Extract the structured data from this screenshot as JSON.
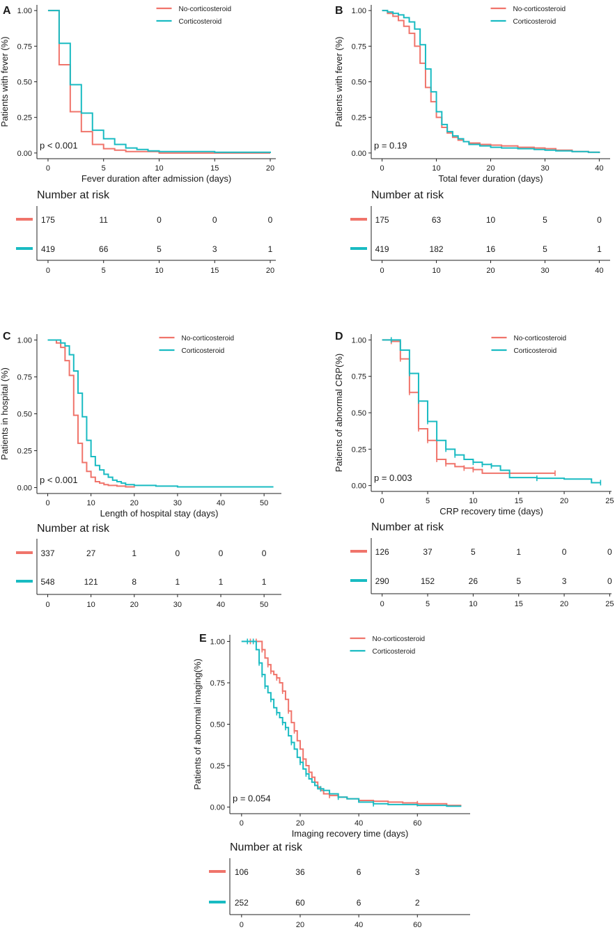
{
  "colors": {
    "no_cs": "#F0746B",
    "cs": "#19BBC2",
    "axis": "#222222",
    "text": "#1a1a1a"
  },
  "risk_title": "Number at risk",
  "chart_data": [
    {
      "panel": "A",
      "type": "line",
      "step": true,
      "xlabel": "Fever duration after admission (days)",
      "ylabel": "Patients with fever (%)",
      "xlim": [
        -1,
        20.5
      ],
      "ylim": [
        -0.04,
        1.04
      ],
      "xticks": [
        0,
        5,
        10,
        15,
        20
      ],
      "yticks": [
        0.0,
        0.25,
        0.5,
        0.75,
        1.0
      ],
      "pvalue": "p < 0.001",
      "legend": [
        "No-corticosteroid",
        "Corticosteroid"
      ],
      "legend_position": "top-right",
      "series": [
        {
          "name": "No-corticosteroid",
          "censor_marks": false,
          "x": [
            0,
            1,
            2,
            3,
            4,
            5,
            6,
            7,
            8,
            9,
            10,
            20
          ],
          "y": [
            1.0,
            0.62,
            0.29,
            0.15,
            0.06,
            0.03,
            0.02,
            0.01,
            0.01,
            0.01,
            0.0,
            0.0
          ]
        },
        {
          "name": "Corticosteroid",
          "censor_marks": false,
          "x": [
            0,
            1,
            2,
            3,
            4,
            5,
            6,
            7,
            8,
            9,
            10,
            15,
            20
          ],
          "y": [
            1.0,
            0.77,
            0.48,
            0.28,
            0.16,
            0.1,
            0.06,
            0.035,
            0.025,
            0.015,
            0.01,
            0.005,
            0.0
          ]
        }
      ],
      "risk_table": {
        "xticks": [
          0,
          5,
          10,
          15,
          20
        ],
        "times": [
          0,
          5,
          10,
          15,
          20
        ],
        "rows": [
          {
            "series": "No-corticosteroid",
            "counts": [
              "175",
              "11",
              "0",
              "0",
              "0"
            ]
          },
          {
            "series": "Corticosteroid",
            "counts": [
              "419",
              "66",
              "5",
              "3",
              "1"
            ]
          }
        ]
      }
    },
    {
      "panel": "B",
      "type": "line",
      "step": true,
      "xlabel": "Total fever duration (days)",
      "ylabel": "Patients with fever (%)",
      "xlim": [
        -2,
        42
      ],
      "ylim": [
        -0.04,
        1.04
      ],
      "xticks": [
        0,
        10,
        20,
        30,
        40
      ],
      "yticks": [
        0.0,
        0.25,
        0.5,
        0.75,
        1.0
      ],
      "pvalue": "p = 0.19",
      "legend": [
        "No-corticosteroid",
        "Corticosteroid"
      ],
      "legend_position": "top-right",
      "series": [
        {
          "name": "No-corticosteroid",
          "censor_marks": false,
          "x": [
            0,
            1,
            2,
            3,
            4,
            5,
            6,
            7,
            8,
            9,
            10,
            11,
            12,
            13,
            14,
            15,
            16,
            18,
            20,
            22,
            25,
            28,
            30,
            32,
            35,
            38,
            40
          ],
          "y": [
            1.0,
            0.98,
            0.96,
            0.93,
            0.89,
            0.84,
            0.75,
            0.63,
            0.46,
            0.36,
            0.25,
            0.18,
            0.14,
            0.11,
            0.09,
            0.08,
            0.07,
            0.06,
            0.055,
            0.05,
            0.04,
            0.035,
            0.03,
            0.02,
            0.01,
            0.005,
            0.0
          ]
        },
        {
          "name": "Corticosteroid",
          "censor_marks": false,
          "x": [
            0,
            1,
            2,
            3,
            4,
            5,
            6,
            7,
            8,
            9,
            10,
            11,
            12,
            13,
            14,
            15,
            16,
            18,
            20,
            22,
            25,
            28,
            30,
            32,
            35,
            38,
            40
          ],
          "y": [
            1.0,
            0.99,
            0.98,
            0.97,
            0.95,
            0.92,
            0.87,
            0.76,
            0.59,
            0.43,
            0.29,
            0.2,
            0.15,
            0.12,
            0.1,
            0.08,
            0.06,
            0.05,
            0.04,
            0.035,
            0.03,
            0.025,
            0.02,
            0.015,
            0.01,
            0.005,
            0.0
          ]
        }
      ],
      "risk_table": {
        "xticks": [
          0,
          10,
          20,
          30,
          40
        ],
        "times": [
          0,
          10,
          20,
          30,
          40
        ],
        "rows": [
          {
            "series": "No-corticosteroid",
            "counts": [
              "175",
              "63",
              "10",
              "5",
              "0"
            ]
          },
          {
            "series": "Corticosteroid",
            "counts": [
              "419",
              "182",
              "16",
              "5",
              "1"
            ]
          }
        ]
      }
    },
    {
      "panel": "C",
      "type": "line",
      "step": true,
      "xlabel": "Length of hospital stay (days)",
      "ylabel": "Patients in hospital (%)",
      "xlim": [
        -2.5,
        54
      ],
      "ylim": [
        -0.04,
        1.04
      ],
      "xticks": [
        0,
        10,
        20,
        30,
        40,
        50
      ],
      "yticks": [
        0.0,
        0.25,
        0.5,
        0.75,
        1.0
      ],
      "pvalue": "p < 0.001",
      "legend": [
        "No-corticosteroid",
        "Corticosteroid"
      ],
      "legend_position": "top-right",
      "series": [
        {
          "name": "No-corticosteroid",
          "censor_marks": false,
          "x": [
            0,
            2,
            3,
            4,
            5,
            6,
            7,
            8,
            9,
            10,
            11,
            12,
            13,
            14,
            16,
            18,
            20
          ],
          "y": [
            1.0,
            0.98,
            0.95,
            0.86,
            0.76,
            0.49,
            0.3,
            0.17,
            0.11,
            0.07,
            0.04,
            0.03,
            0.02,
            0.015,
            0.01,
            0.005,
            0.0
          ]
        },
        {
          "name": "Corticosteroid",
          "censor_marks": false,
          "x": [
            0,
            3,
            4,
            5,
            6,
            7,
            8,
            9,
            10,
            11,
            12,
            13,
            14,
            15,
            16,
            17,
            18,
            20,
            25,
            30,
            52
          ],
          "y": [
            1.0,
            0.98,
            0.96,
            0.9,
            0.79,
            0.64,
            0.48,
            0.32,
            0.21,
            0.15,
            0.12,
            0.09,
            0.07,
            0.05,
            0.04,
            0.03,
            0.02,
            0.015,
            0.01,
            0.005,
            0.0
          ]
        }
      ],
      "risk_table": {
        "xticks": [
          0,
          10,
          20,
          30,
          40,
          50
        ],
        "times": [
          0,
          10,
          20,
          30,
          40,
          50
        ],
        "rows": [
          {
            "series": "No-corticosteroid",
            "counts": [
              "337",
              "27",
              "1",
              "0",
              "0",
              "0"
            ]
          },
          {
            "series": "Corticosteroid",
            "counts": [
              "548",
              "121",
              "8",
              "1",
              "1",
              "1"
            ]
          }
        ]
      }
    },
    {
      "panel": "D",
      "type": "line",
      "step": true,
      "xlabel": "CRP recovery time (days)",
      "ylabel": "Patients of abnormal CRP(%)",
      "xlim": [
        -1.2,
        25.2
      ],
      "ylim": [
        -0.04,
        1.04
      ],
      "xticks": [
        0,
        5,
        10,
        15,
        20,
        25
      ],
      "yticks": [
        0.0,
        0.25,
        0.5,
        0.75,
        1.0
      ],
      "pvalue": "p = 0.003",
      "legend": [
        "No-corticosteroid",
        "Corticosteroid"
      ],
      "legend_position": "top-right",
      "series": [
        {
          "name": "No-corticosteroid",
          "censor_marks": true,
          "x": [
            0,
            1,
            2,
            3,
            4,
            5,
            6,
            7,
            8,
            9,
            10,
            11,
            19
          ],
          "y": [
            1.0,
            0.99,
            0.87,
            0.64,
            0.39,
            0.31,
            0.18,
            0.15,
            0.13,
            0.12,
            0.11,
            0.085,
            0.085
          ],
          "censor_x": [
            1,
            2,
            3,
            4,
            5,
            6,
            7,
            9,
            10,
            19
          ]
        },
        {
          "name": "Corticosteroid",
          "censor_marks": true,
          "x": [
            0,
            2,
            3,
            4,
            5,
            6,
            7,
            8,
            9,
            10,
            11,
            12,
            13,
            14,
            17,
            20,
            23,
            24
          ],
          "y": [
            1.0,
            0.93,
            0.77,
            0.58,
            0.44,
            0.31,
            0.25,
            0.21,
            0.18,
            0.16,
            0.145,
            0.135,
            0.105,
            0.055,
            0.05,
            0.045,
            0.02,
            0.02
          ],
          "censor_x": [
            1,
            3,
            4,
            5,
            7,
            8,
            10,
            11,
            12,
            17,
            24
          ]
        }
      ],
      "risk_table": {
        "xticks": [
          0,
          5,
          10,
          15,
          20,
          25
        ],
        "times": [
          0,
          5,
          10,
          15,
          20,
          25
        ],
        "rows": [
          {
            "series": "No-corticosteroid",
            "counts": [
              "126",
              "37",
              "5",
              "1",
              "0",
              "0"
            ]
          },
          {
            "series": "Corticosteroid",
            "counts": [
              "290",
              "152",
              "26",
              "5",
              "3",
              "0"
            ]
          }
        ]
      }
    },
    {
      "panel": "E",
      "type": "line",
      "step": true,
      "xlabel": "Imaging recovery time (days)",
      "ylabel": "Patients of abnormal imaging(%)",
      "xlim": [
        -4,
        78
      ],
      "ylim": [
        -0.04,
        1.04
      ],
      "xticks": [
        0,
        20,
        40,
        60
      ],
      "yticks": [
        0.0,
        0.25,
        0.5,
        0.75,
        1.0
      ],
      "pvalue": "p = 0.054",
      "legend": [
        "No-corticosteroid",
        "Corticosteroid"
      ],
      "legend_position": "top-right",
      "series": [
        {
          "name": "No-corticosteroid",
          "censor_marks": true,
          "x": [
            0,
            7,
            8,
            9,
            10,
            11,
            12,
            13,
            14,
            15,
            16,
            17,
            18,
            19,
            20,
            21,
            22,
            23,
            24,
            25,
            26,
            27,
            28,
            30,
            33,
            36,
            40,
            45,
            50,
            55,
            60,
            70,
            75
          ],
          "y": [
            1.0,
            0.95,
            0.9,
            0.86,
            0.82,
            0.8,
            0.78,
            0.75,
            0.7,
            0.65,
            0.58,
            0.51,
            0.46,
            0.4,
            0.35,
            0.29,
            0.25,
            0.21,
            0.18,
            0.15,
            0.12,
            0.1,
            0.08,
            0.07,
            0.06,
            0.05,
            0.04,
            0.035,
            0.03,
            0.025,
            0.02,
            0.01,
            0.01
          ],
          "censor_x": [
            3,
            5,
            7,
            9,
            10,
            12,
            14,
            16,
            18,
            21,
            24,
            30,
            60
          ]
        },
        {
          "name": "Corticosteroid",
          "censor_marks": true,
          "x": [
            0,
            5,
            6,
            7,
            8,
            9,
            10,
            11,
            12,
            13,
            14,
            15,
            16,
            17,
            18,
            19,
            20,
            21,
            22,
            23,
            24,
            25,
            26,
            28,
            30,
            33,
            36,
            40,
            45,
            50,
            60,
            70,
            75
          ],
          "y": [
            1.0,
            0.95,
            0.87,
            0.8,
            0.73,
            0.69,
            0.65,
            0.6,
            0.57,
            0.54,
            0.51,
            0.48,
            0.43,
            0.39,
            0.35,
            0.3,
            0.27,
            0.23,
            0.2,
            0.17,
            0.15,
            0.13,
            0.11,
            0.1,
            0.08,
            0.06,
            0.05,
            0.03,
            0.02,
            0.015,
            0.01,
            0.005,
            0.005
          ],
          "censor_x": [
            2,
            4,
            6,
            7,
            8,
            10,
            12,
            14,
            15,
            17,
            20,
            22,
            27,
            33,
            45
          ]
        }
      ],
      "risk_table": {
        "xticks": [
          0,
          20,
          40,
          60
        ],
        "times": [
          0,
          20,
          40,
          60
        ],
        "rows": [
          {
            "series": "No-corticosteroid",
            "counts": [
              "106",
              "36",
              "6",
              "3"
            ]
          },
          {
            "series": "Corticosteroid",
            "counts": [
              "252",
              "60",
              "6",
              "2"
            ]
          }
        ]
      }
    }
  ]
}
